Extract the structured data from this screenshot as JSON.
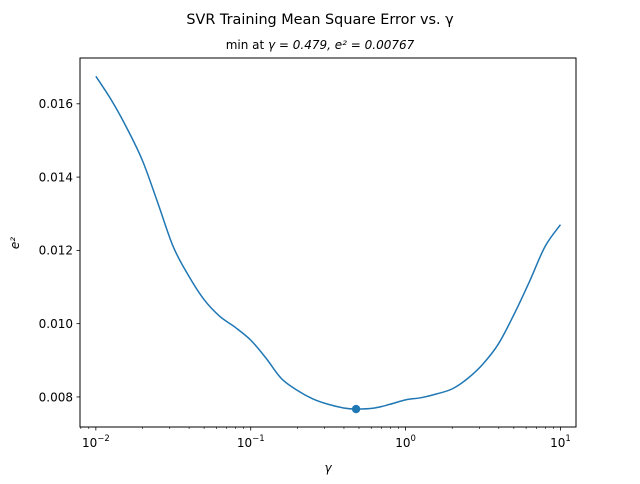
{
  "chart_data": {
    "type": "line",
    "title": "SVR Training Mean Square Error vs. γ",
    "subtitle_prefix": "min at ",
    "subtitle_math_1": "γ = 0.479, ",
    "subtitle_math_2": "e² = 0.00767",
    "xlabel": "γ",
    "ylabel": "e²",
    "x_scale": "log",
    "xlim": [
      0.0079,
      12.6
    ],
    "ylim": [
      0.00718,
      0.01725
    ],
    "x_ticks": [
      {
        "value": 0.01,
        "base": "10",
        "exp": "−2"
      },
      {
        "value": 0.1,
        "base": "10",
        "exp": "−1"
      },
      {
        "value": 1,
        "base": "10",
        "exp": "0"
      },
      {
        "value": 10,
        "base": "10",
        "exp": "1"
      }
    ],
    "y_ticks": [
      {
        "value": 0.008,
        "label": "0.008"
      },
      {
        "value": 0.01,
        "label": "0.010"
      },
      {
        "value": 0.012,
        "label": "0.012"
      },
      {
        "value": 0.014,
        "label": "0.014"
      },
      {
        "value": 0.016,
        "label": "0.016"
      }
    ],
    "grid": false,
    "colors": {
      "line": "#1f77b4",
      "marker": "#1f77b4",
      "axes": "#000000"
    },
    "series": [
      {
        "x": [
          0.01,
          0.0126,
          0.0158,
          0.02,
          0.0251,
          0.0316,
          0.0398,
          0.0501,
          0.0631,
          0.0794,
          0.1,
          0.126,
          0.158,
          0.2,
          0.251,
          0.316,
          0.398,
          0.479,
          0.631,
          0.794,
          1.0,
          1.26,
          1.58,
          2.0,
          2.51,
          3.16,
          3.98,
          5.01,
          6.31,
          7.94,
          10.0
        ],
        "y": [
          0.01675,
          0.0161,
          0.01535,
          0.01445,
          0.0133,
          0.0121,
          0.0113,
          0.01065,
          0.0102,
          0.0099,
          0.00955,
          0.00905,
          0.0085,
          0.00818,
          0.00795,
          0.0078,
          0.0077,
          0.00767,
          0.0077,
          0.0078,
          0.00792,
          0.00798,
          0.00808,
          0.00822,
          0.0085,
          0.0089,
          0.00945,
          0.01025,
          0.01115,
          0.0121,
          0.0127
        ]
      }
    ],
    "min_point": {
      "x": 0.479,
      "y": 0.00767
    }
  }
}
